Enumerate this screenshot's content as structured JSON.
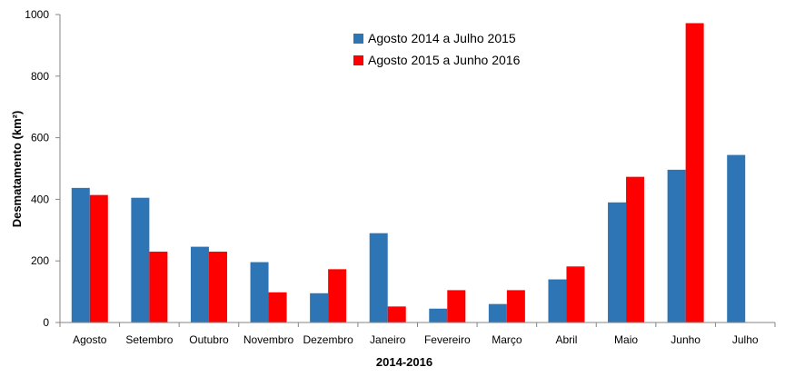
{
  "chart_data": {
    "type": "bar",
    "title": "",
    "xlabel": "2014-2016",
    "ylabel": "Desmatamento (km²)",
    "ylim": [
      0,
      1000
    ],
    "yticks": [
      0,
      200,
      400,
      600,
      800,
      1000
    ],
    "grid": false,
    "legend_position": "top-center",
    "categories": [
      "Agosto",
      "Setembro",
      "Outubro",
      "Novembro",
      "Dezembro",
      "Janeiro",
      "Fevereiro",
      "Março",
      "Abril",
      "Maio",
      "Junho",
      "Julho"
    ],
    "series": [
      {
        "name": "Agosto 2014 a Julho 2015",
        "color": "#2e75b6",
        "values": [
          437,
          405,
          246,
          196,
          95,
          290,
          45,
          60,
          140,
          390,
          496,
          544
        ]
      },
      {
        "name": "Agosto 2015 a Junho 2016",
        "color": "#ff0000",
        "values": [
          414,
          230,
          230,
          98,
          173,
          52,
          105,
          105,
          182,
          473,
          972,
          null
        ]
      }
    ]
  }
}
